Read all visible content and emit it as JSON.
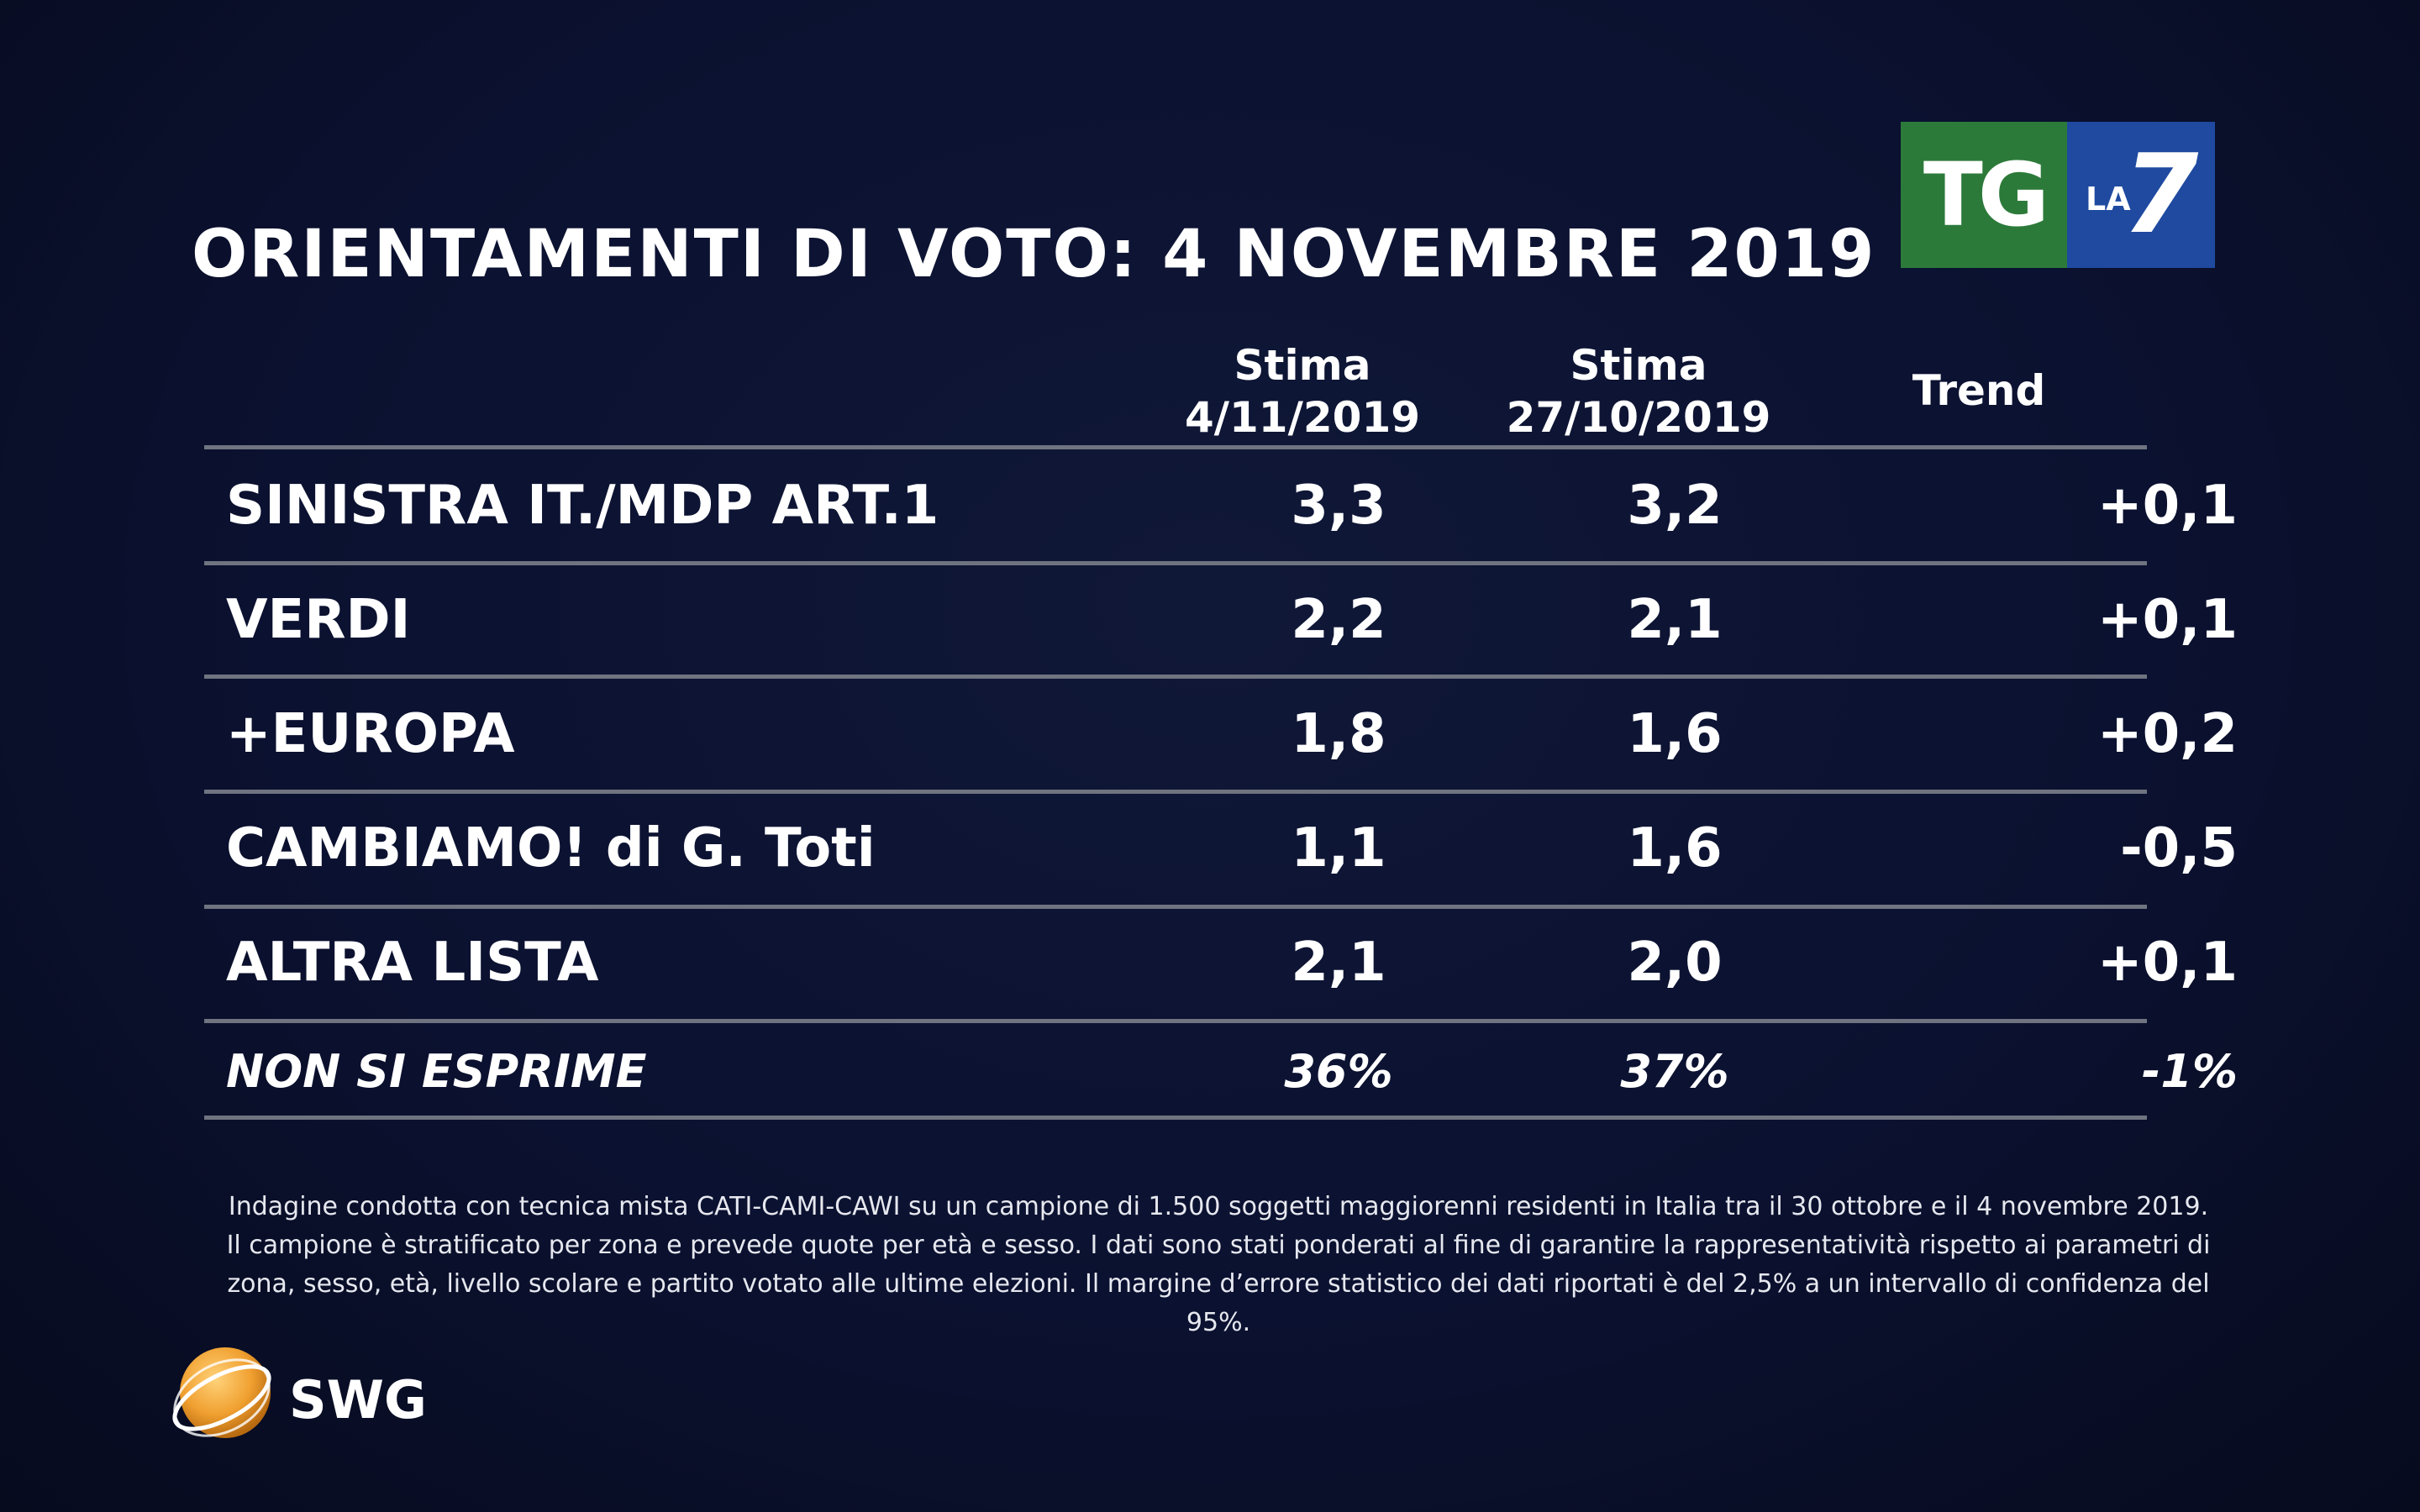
{
  "title": "ORIENTAMENTI DI VOTO: 4 NOVEMBRE 2019",
  "logo": {
    "tg": "TG",
    "la": "LA",
    "seven": "7"
  },
  "chart_data": {
    "type": "table",
    "columns": [
      {
        "line1": "Stima",
        "line2": "4/11/2019"
      },
      {
        "line1": "Stima",
        "line2": "27/10/2019"
      },
      {
        "line1": "Trend",
        "line2": ""
      }
    ],
    "rows": [
      {
        "party": "SINISTRA IT./MDP ART.1",
        "current": "3,3",
        "previous": "3,2",
        "trend": "+0,1"
      },
      {
        "party": "VERDI",
        "current": "2,2",
        "previous": "2,1",
        "trend": "+0,1"
      },
      {
        "party": "+EUROPA",
        "current": "1,8",
        "previous": "1,6",
        "trend": "+0,2"
      },
      {
        "party": "CAMBIAMO! di G. Toti",
        "current": "1,1",
        "previous": "1,6",
        "trend": "-0,5"
      },
      {
        "party": "ALTRA LISTA",
        "current": "2,1",
        "previous": "2,0",
        "trend": "+0,1"
      },
      {
        "party": "NON SI ESPRIME",
        "current": "36%",
        "previous": "37%",
        "trend": "-1%"
      }
    ]
  },
  "note": "Indagine condotta con tecnica mista CATI-CAMI-CAWI su un campione di 1.500 soggetti maggiorenni residenti in Italia tra il 30 ottobre e il 4 novembre 2019. Il campione è stratificato per zona e prevede quote per età e sesso. I dati sono stati ponderati al fine di garantire la rappresentatività rispetto ai parametri di zona, sesso, età, livello scolare e partito votato alle ultime elezioni. Il margine d’errore statistico dei dati riportati è del 2,5% a un intervallo di confidenza del 95%.",
  "source_logo": "SWG",
  "colors": {
    "background": "#0b1130",
    "rule": "#6f7480",
    "tg_green": "#2c7a3a",
    "la7_blue": "#1f4aa0",
    "swg_orange": "#f0a030"
  }
}
